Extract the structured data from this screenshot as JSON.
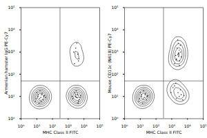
{
  "chart_data": [
    {
      "type": "scatter",
      "x_label": "MHC Class II FITC",
      "y_label": "Armenian hamster IgG PE-Cy7",
      "log": true,
      "grid": false,
      "color": "#000000",
      "xlim": [
        1,
        100000
      ],
      "ylim": [
        1,
        100000
      ],
      "xticks": [
        {
          "value": 1,
          "label": "10⁰"
        },
        {
          "value": 10,
          "label": "10¹"
        },
        {
          "value": 100,
          "label": "10²"
        },
        {
          "value": 1000,
          "label": "10³"
        },
        {
          "value": 10000,
          "label": "10⁴"
        },
        {
          "value": 100000,
          "label": "10⁵"
        }
      ],
      "yticks": [
        {
          "value": 1,
          "label": "10⁰"
        },
        {
          "value": 10,
          "label": "10¹"
        },
        {
          "value": 100,
          "label": "10²"
        },
        {
          "value": 1000,
          "label": "10³"
        },
        {
          "value": 10000,
          "label": "10⁴"
        },
        {
          "value": 100000,
          "label": "10⁵"
        }
      ],
      "gate_x": 300,
      "gate_y": 50,
      "x": [
        8,
        12,
        15,
        20,
        25,
        10,
        18,
        30,
        14,
        22,
        9,
        16,
        28,
        35,
        12,
        19,
        2000,
        3000,
        4000,
        5000,
        2500,
        3500,
        6000,
        4500,
        2800,
        3200,
        5500,
        1800,
        4200,
        3800,
        2500,
        4000,
        3000,
        5000,
        3500,
        2200,
        4500
      ],
      "values": [
        6,
        10,
        8,
        12,
        7,
        15,
        9,
        11,
        5,
        14,
        8,
        18,
        10,
        9,
        12,
        6,
        8,
        10,
        12,
        7,
        15,
        9,
        11,
        6,
        13,
        18,
        9,
        10,
        5,
        14,
        300,
        800,
        1500,
        500,
        2500,
        1000,
        400
      ]
    },
    {
      "type": "scatter",
      "x_label": "MHC Class II FITC",
      "y_label": "Mouse CD11c (N418) PE-Cy7",
      "log": true,
      "grid": false,
      "color": "#000000",
      "xlim": [
        1,
        100000
      ],
      "ylim": [
        1,
        100000
      ],
      "xticks": [
        {
          "value": 1,
          "label": "10⁰"
        },
        {
          "value": 10,
          "label": "10¹"
        },
        {
          "value": 100,
          "label": "10²"
        },
        {
          "value": 1000,
          "label": "10³"
        },
        {
          "value": 10000,
          "label": "10⁴"
        },
        {
          "value": 100000,
          "label": "10⁵"
        }
      ],
      "yticks": [
        {
          "value": 1,
          "label": "10⁰"
        },
        {
          "value": 10,
          "label": "10¹"
        },
        {
          "value": 100,
          "label": "10²"
        },
        {
          "value": 1000,
          "label": "10³"
        },
        {
          "value": 10000,
          "label": "10⁴"
        },
        {
          "value": 100000,
          "label": "10⁵"
        }
      ],
      "gate_x": 300,
      "gate_y": 50,
      "x": [
        8,
        12,
        15,
        20,
        25,
        10,
        18,
        30,
        14,
        22,
        9,
        16,
        28,
        12,
        2000,
        3000,
        4000,
        5000,
        2500,
        3500,
        6000,
        1200,
        1500,
        900,
        1800,
        1500,
        2000,
        2500,
        3000,
        3500,
        4000,
        2200,
        2800,
        3200,
        1800,
        2600,
        3600,
        2400,
        3000,
        2000
      ],
      "values": [
        6,
        10,
        8,
        12,
        7,
        15,
        9,
        11,
        5,
        14,
        8,
        18,
        10,
        12,
        8,
        10,
        12,
        7,
        15,
        20,
        11,
        25,
        30,
        15,
        40,
        300,
        500,
        800,
        1200,
        2000,
        600,
        1500,
        900,
        400,
        700,
        2500,
        1000,
        3500,
        250,
        450
      ]
    }
  ]
}
